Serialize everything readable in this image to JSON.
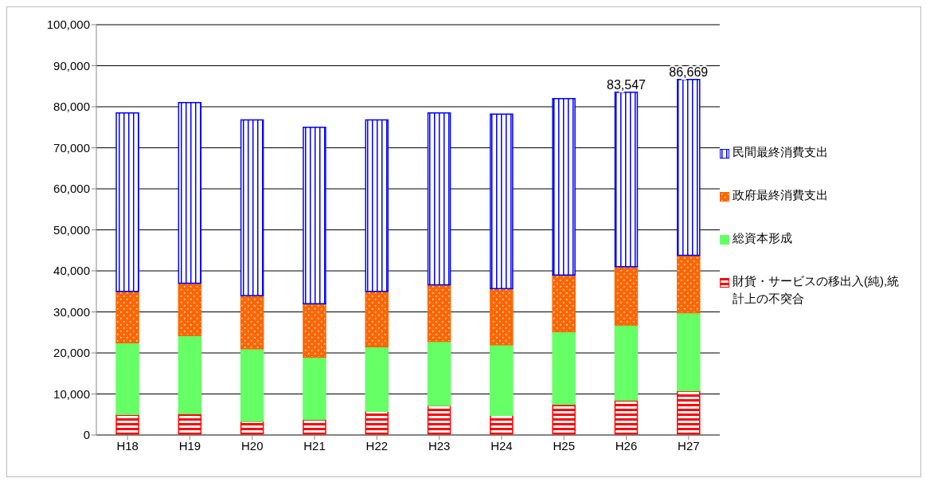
{
  "chart_data": {
    "type": "bar",
    "stacked": true,
    "categories": [
      "H18",
      "H19",
      "H20",
      "H21",
      "H22",
      "H23",
      "H24",
      "H25",
      "H26",
      "H27"
    ],
    "series": [
      {
        "name": "財貨・サービスの移出入(純),統計上の不突合",
        "color": "#ff0000",
        "values": [
          5000,
          5200,
          3300,
          3800,
          5800,
          7200,
          4800,
          7500,
          8500,
          10800
        ]
      },
      {
        "name": "総資本形成",
        "color": "#66ff66",
        "values": [
          17500,
          19000,
          17700,
          15200,
          15700,
          15600,
          17200,
          17700,
          18300,
          19000
        ]
      },
      {
        "name": "政府最終消費支出",
        "color": "#ff6600",
        "values": [
          12500,
          12800,
          13000,
          13000,
          13500,
          13800,
          13700,
          13800,
          14200,
          14000
        ]
      },
      {
        "name": "民間最終消費支出",
        "color": "#0000ff",
        "values": [
          43500,
          44000,
          42800,
          43000,
          41800,
          41900,
          42500,
          43000,
          42547,
          42869
        ]
      }
    ],
    "totals": [
      null,
      null,
      null,
      null,
      null,
      null,
      null,
      null,
      "83,547",
      "86,669"
    ],
    "ylim": [
      0,
      100000
    ],
    "yticks": [
      {
        "value": 0,
        "label": "0"
      },
      {
        "value": 10000,
        "label": "10,000"
      },
      {
        "value": 20000,
        "label": "20,000"
      },
      {
        "value": 30000,
        "label": "30,000"
      },
      {
        "value": 40000,
        "label": "40,000"
      },
      {
        "value": 50000,
        "label": "50,000"
      },
      {
        "value": 60000,
        "label": "60,000"
      },
      {
        "value": 70000,
        "label": "70,000"
      },
      {
        "value": 80000,
        "label": "80,000"
      },
      {
        "value": 90000,
        "label": "90,000"
      },
      {
        "value": 100000,
        "label": "100,000"
      }
    ],
    "grid": "y",
    "legend": "right"
  }
}
